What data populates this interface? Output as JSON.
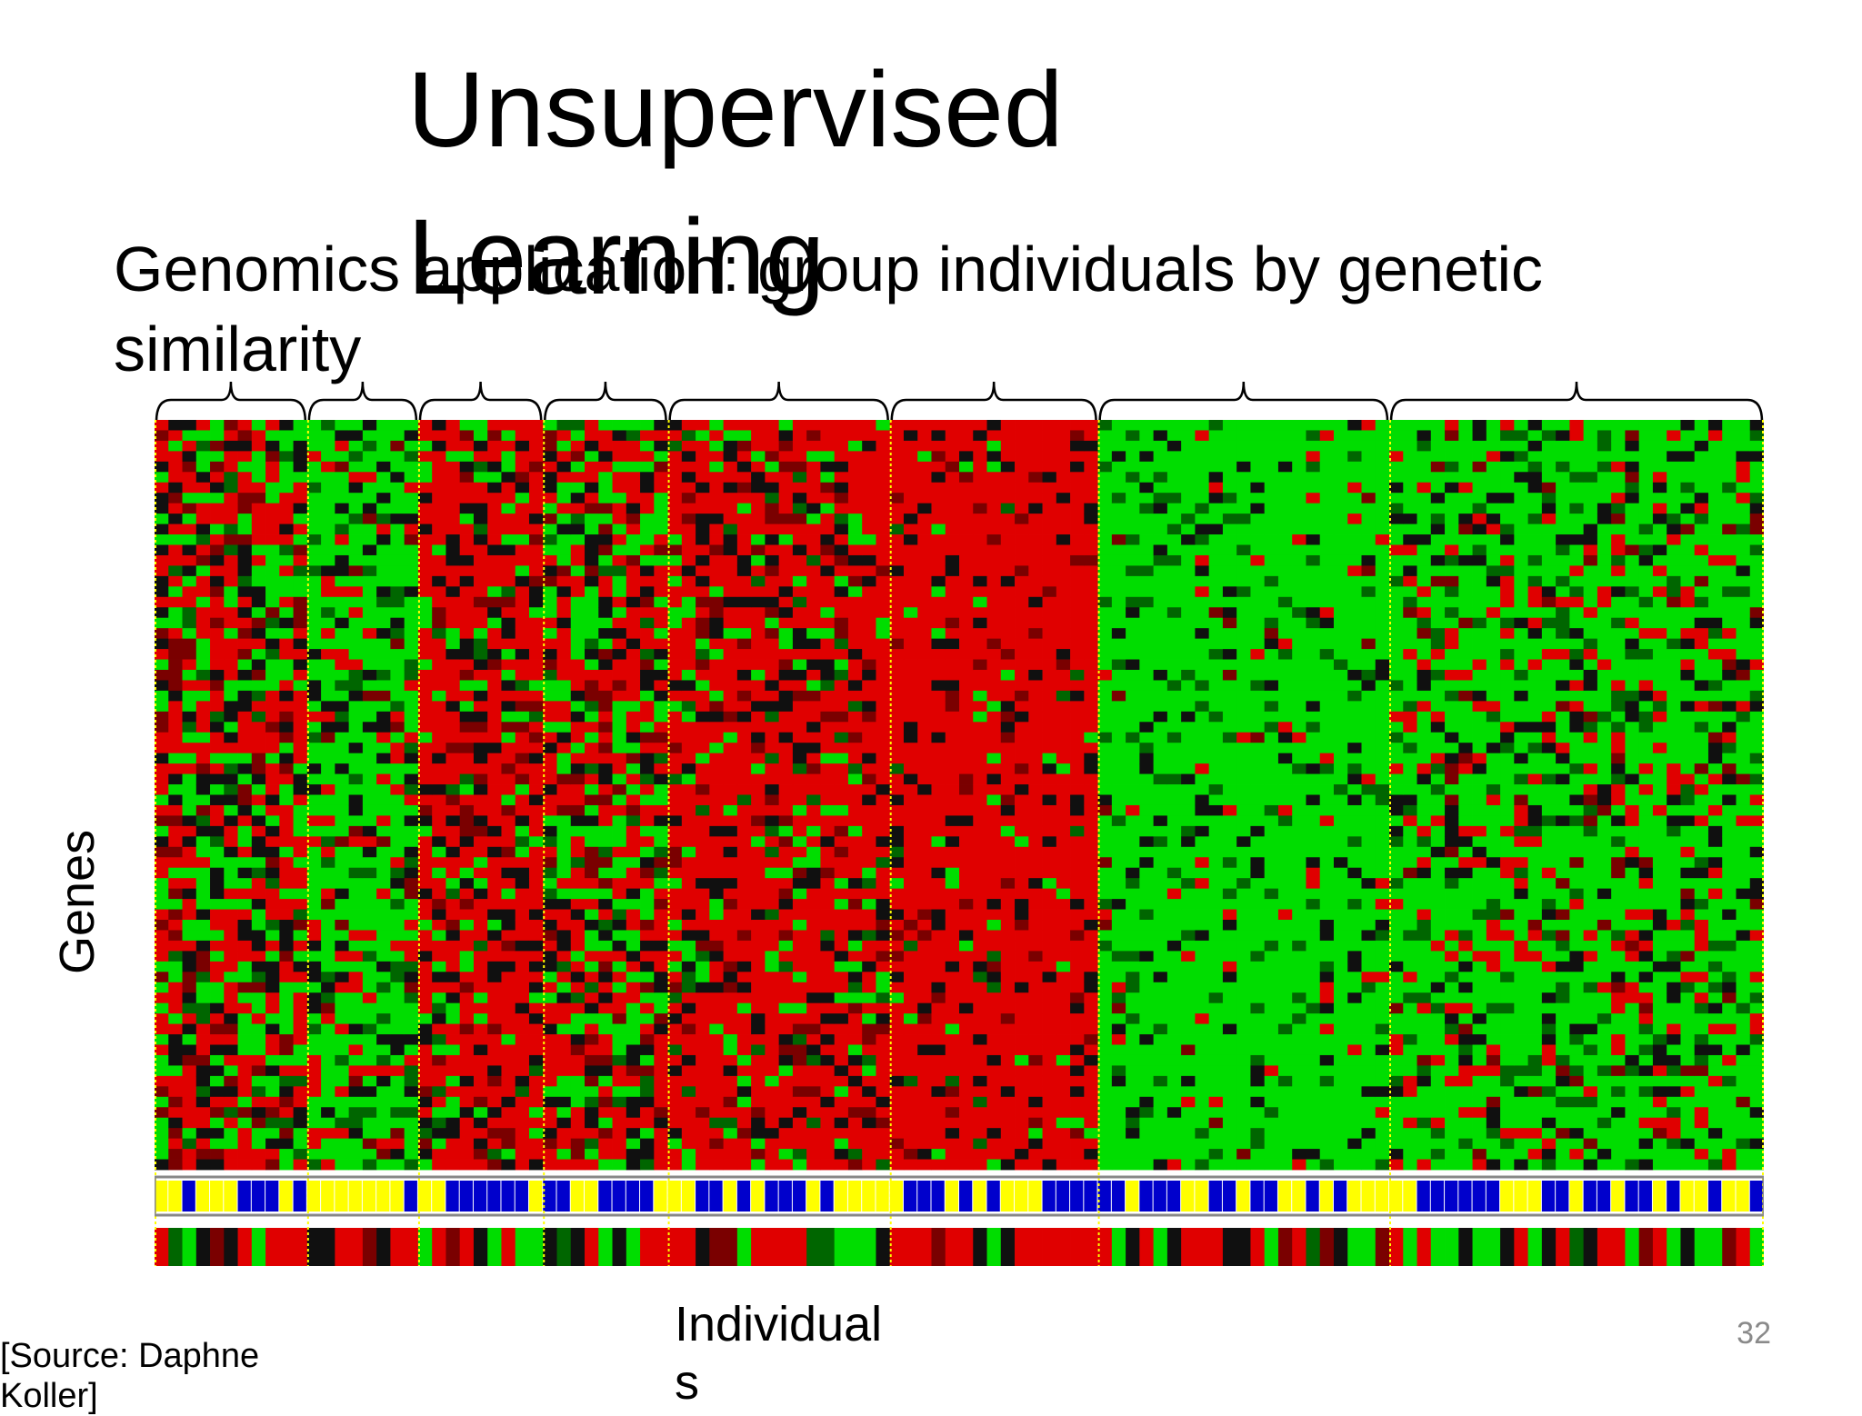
{
  "slide": {
    "title": "Unsupervised Learning",
    "subtitle": "Genomics application: group individuals by genetic similarity",
    "genes_label": "Genes",
    "individuals_label": "Individuals",
    "source": "[Source: Daphne Koller]",
    "page_number": "32"
  },
  "chart_data": {
    "type": "heatmap",
    "rows": "genes",
    "columns": "individuals",
    "clusters": [
      {
        "columns": 11,
        "tendency": "mixed"
      },
      {
        "columns": 8,
        "tendency": "green"
      },
      {
        "columns": 9,
        "tendency": "red"
      },
      {
        "columns": 9,
        "tendency": "mixed"
      },
      {
        "columns": 16,
        "tendency": "red"
      },
      {
        "columns": 15,
        "tendency": "strong-red"
      },
      {
        "columns": 21,
        "tendency": "strong-green"
      },
      {
        "columns": 27,
        "tendency": "green"
      }
    ],
    "gene_rows": 72,
    "annotation_rows": [
      "blue/yellow group labels",
      "red/green expression bar"
    ],
    "colors": {
      "red": "#e00000",
      "green": "#00dd00",
      "black": "#101010",
      "dark_red": "#7a0000",
      "dark_green": "#006600",
      "blue": "#0000cc",
      "yellow": "#ffff00"
    }
  }
}
